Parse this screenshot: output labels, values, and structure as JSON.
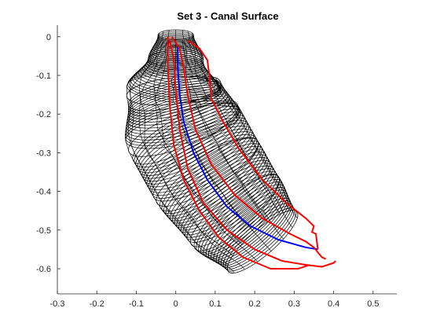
{
  "chart_data": {
    "type": "line",
    "title": "Set 3 - Canal Surface",
    "xlabel": "",
    "ylabel": "",
    "xlim": [
      -0.3,
      0.56
    ],
    "ylim": [
      -0.665,
      0.03
    ],
    "xticks": [
      -0.3,
      -0.2,
      -0.1,
      0,
      0.1,
      0.2,
      0.3,
      0.4,
      0.5
    ],
    "xtick_labels": [
      "-0.3",
      "-0.2",
      "-0.1",
      "0",
      "0.1",
      "0.2",
      "0.3",
      "0.4",
      "0.5"
    ],
    "yticks": [
      0,
      -0.1,
      -0.2,
      -0.3,
      -0.4,
      -0.5,
      -0.6
    ],
    "ytick_labels": [
      "0",
      "-0.1",
      "-0.2",
      "-0.3",
      "-0.4",
      "-0.5",
      "-0.6"
    ],
    "grid": false,
    "legend": "none",
    "surface": {
      "color": "#000000",
      "description_free": true,
      "spine": [
        {
          "x": 0.0,
          "y": 0.005,
          "r": 0.045
        },
        {
          "x": 0.0,
          "y": -0.06,
          "r": 0.07
        },
        {
          "x": -0.005,
          "y": -0.14,
          "r": 0.12
        },
        {
          "x": 0.02,
          "y": -0.24,
          "r": 0.15
        },
        {
          "x": 0.08,
          "y": -0.35,
          "r": 0.15
        },
        {
          "x": 0.15,
          "y": -0.45,
          "r": 0.14
        },
        {
          "x": 0.22,
          "y": -0.53,
          "r": 0.115
        }
      ]
    },
    "series": [
      {
        "color": "#0000ff",
        "values": [
          [
            0.005,
            -0.02
          ],
          [
            0.005,
            -0.08
          ],
          [
            0.01,
            -0.15
          ],
          [
            0.02,
            -0.22
          ],
          [
            0.045,
            -0.3
          ],
          [
            0.08,
            -0.37
          ],
          [
            0.13,
            -0.44
          ],
          [
            0.19,
            -0.49
          ],
          [
            0.26,
            -0.525
          ],
          [
            0.33,
            -0.545
          ],
          [
            0.36,
            -0.55
          ]
        ]
      },
      {
        "color": "#ff0000",
        "values": [
          [
            0.03,
            -0.01
          ],
          [
            0.06,
            -0.03
          ],
          [
            0.08,
            -0.06
          ],
          [
            0.085,
            -0.1
          ],
          [
            0.09,
            -0.16
          ],
          [
            0.12,
            -0.22
          ],
          [
            0.16,
            -0.29
          ],
          [
            0.22,
            -0.37
          ],
          [
            0.28,
            -0.43
          ],
          [
            0.33,
            -0.47
          ],
          [
            0.35,
            -0.49
          ],
          [
            0.345,
            -0.505
          ],
          [
            0.355,
            -0.51
          ],
          [
            0.36,
            -0.55
          ]
        ]
      },
      {
        "color": "#ff0000",
        "values": [
          [
            -0.01,
            0.0
          ],
          [
            0.01,
            -0.03
          ],
          [
            0.02,
            -0.08
          ],
          [
            0.03,
            -0.15
          ],
          [
            0.05,
            -0.24
          ],
          [
            0.09,
            -0.33
          ],
          [
            0.15,
            -0.41
          ],
          [
            0.22,
            -0.47
          ],
          [
            0.29,
            -0.51
          ],
          [
            0.33,
            -0.53
          ],
          [
            0.35,
            -0.545
          ],
          [
            0.37,
            -0.57
          ],
          [
            0.38,
            -0.575
          ]
        ]
      },
      {
        "color": "#ff0000",
        "values": [
          [
            -0.015,
            -0.01
          ],
          [
            -0.005,
            -0.06
          ],
          [
            0.0,
            -0.14
          ],
          [
            0.01,
            -0.24
          ],
          [
            0.03,
            -0.34
          ],
          [
            0.07,
            -0.43
          ],
          [
            0.13,
            -0.5
          ],
          [
            0.2,
            -0.55
          ],
          [
            0.27,
            -0.58
          ],
          [
            0.33,
            -0.59
          ],
          [
            0.37,
            -0.595
          ],
          [
            0.4,
            -0.585
          ],
          [
            0.405,
            -0.58
          ]
        ]
      },
      {
        "color": "#ff0000",
        "values": [
          [
            -0.02,
            0.0
          ],
          [
            -0.02,
            -0.08
          ],
          [
            -0.015,
            -0.18
          ],
          [
            -0.005,
            -0.28
          ],
          [
            0.02,
            -0.37
          ],
          [
            0.06,
            -0.45
          ],
          [
            0.11,
            -0.52
          ],
          [
            0.17,
            -0.57
          ],
          [
            0.24,
            -0.6
          ],
          [
            0.31,
            -0.6
          ],
          [
            0.34,
            -0.59
          ]
        ]
      }
    ]
  }
}
